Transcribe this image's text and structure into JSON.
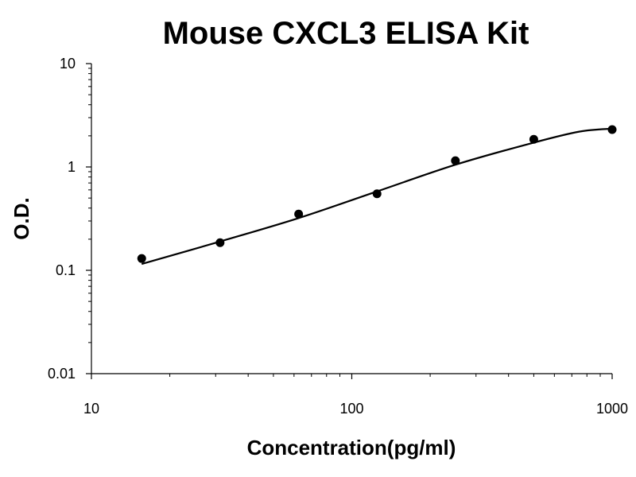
{
  "chart_data": {
    "type": "scatter",
    "title": "Mouse CXCL3 ELISA Kit",
    "xlabel": "Concentration(pg/ml)",
    "ylabel": "O.D.",
    "xscale": "log",
    "yscale": "log",
    "xlim": [
      10,
      1000
    ],
    "ylim": [
      0.01,
      10
    ],
    "grid": false,
    "legend": "none",
    "x_ticks": [
      {
        "value": 10,
        "label": "10"
      },
      {
        "value": 100,
        "label": "100"
      },
      {
        "value": 1000,
        "label": "1000"
      }
    ],
    "y_ticks": [
      {
        "value": 0.01,
        "label": "0.01"
      },
      {
        "value": 0.1,
        "label": "0.1"
      },
      {
        "value": 1,
        "label": "1"
      },
      {
        "value": 10,
        "label": "10"
      }
    ],
    "series": [
      {
        "points": [
          {
            "x": 15.6,
            "y": 0.13
          },
          {
            "x": 31.2,
            "y": 0.185
          },
          {
            "x": 62.5,
            "y": 0.35
          },
          {
            "x": 125,
            "y": 0.55
          },
          {
            "x": 250,
            "y": 1.15
          },
          {
            "x": 500,
            "y": 1.85
          },
          {
            "x": 1000,
            "y": 2.3
          }
        ],
        "fit_curve": [
          {
            "x": 15.6,
            "y": 0.115
          },
          {
            "x": 31.2,
            "y": 0.19
          },
          {
            "x": 62.5,
            "y": 0.32
          },
          {
            "x": 125,
            "y": 0.58
          },
          {
            "x": 250,
            "y": 1.05
          },
          {
            "x": 500,
            "y": 1.72
          },
          {
            "x": 750,
            "y": 2.2
          },
          {
            "x": 1000,
            "y": 2.35
          }
        ]
      }
    ],
    "colors": {
      "marker": "#000000",
      "line": "#000000",
      "axis": "#000000"
    }
  }
}
